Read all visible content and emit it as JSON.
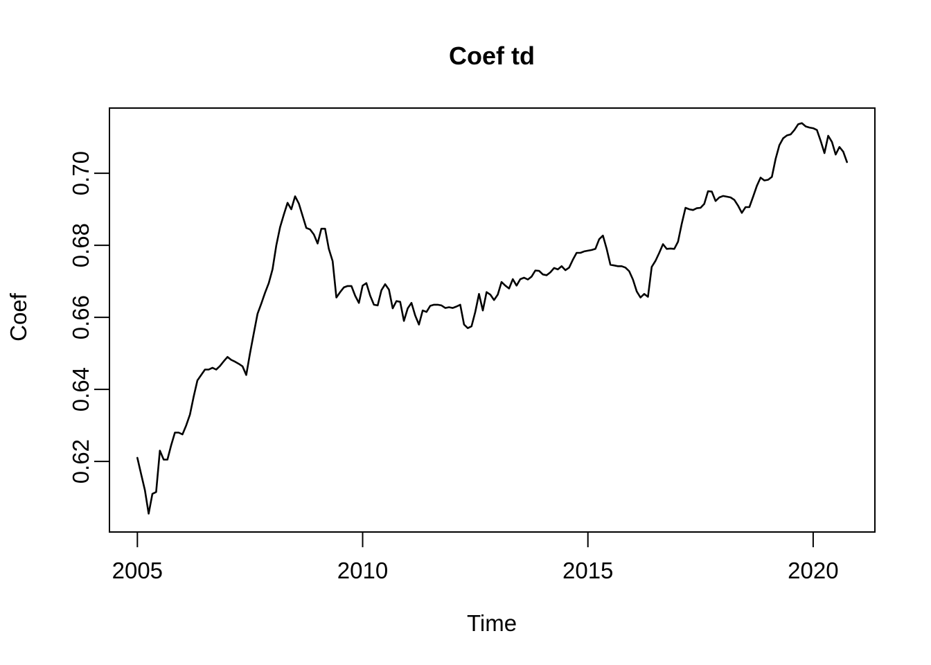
{
  "window": {
    "background": "#ffffff",
    "foreground": "#000000"
  },
  "chart_data": {
    "type": "line",
    "title": "Coef td",
    "xlabel": "Time",
    "ylabel": "Coef",
    "grid": false,
    "legend": null,
    "box": true,
    "line_color": "#000000",
    "background": "#ffffff",
    "x_ticks": [
      2005,
      2010,
      2015,
      2020
    ],
    "y_ticks": [
      0.62,
      0.64,
      0.66,
      0.68,
      0.7
    ],
    "xlim": [
      2004.38,
      2021.37
    ],
    "ylim": [
      0.6004,
      0.7181
    ],
    "x_start": 2005.0,
    "x_step": 0.0833333,
    "x_unit": "decimal-year, monthly frequency",
    "series": [
      {
        "name": "Coef",
        "start": "2005-01",
        "end": "2020-10",
        "frequency": "monthly",
        "values": [
          0.621,
          0.6165,
          0.612,
          0.6055,
          0.611,
          0.6115,
          0.623,
          0.6205,
          0.6205,
          0.6245,
          0.628,
          0.628,
          0.6275,
          0.63,
          0.633,
          0.638,
          0.6425,
          0.644,
          0.6455,
          0.6455,
          0.646,
          0.6455,
          0.6465,
          0.6478,
          0.649,
          0.6482,
          0.6477,
          0.6471,
          0.6464,
          0.644,
          0.65,
          0.6555,
          0.661,
          0.6638,
          0.6668,
          0.6695,
          0.6733,
          0.68,
          0.685,
          0.6885,
          0.6918,
          0.69,
          0.6936,
          0.6916,
          0.6882,
          0.6848,
          0.6844,
          0.683,
          0.6805,
          0.6846,
          0.6846,
          0.679,
          0.6756,
          0.6655,
          0.667,
          0.6683,
          0.6687,
          0.6687,
          0.666,
          0.664,
          0.6688,
          0.6695,
          0.666,
          0.6635,
          0.6633,
          0.6675,
          0.6692,
          0.6677,
          0.6625,
          0.6645,
          0.6643,
          0.659,
          0.6625,
          0.664,
          0.6605,
          0.658,
          0.6619,
          0.6615,
          0.6632,
          0.6635,
          0.6635,
          0.6633,
          0.6626,
          0.6628,
          0.6626,
          0.663,
          0.6635,
          0.658,
          0.657,
          0.6575,
          0.6615,
          0.6665,
          0.6619,
          0.667,
          0.6663,
          0.6648,
          0.6663,
          0.6698,
          0.6688,
          0.668,
          0.6706,
          0.6688,
          0.6706,
          0.671,
          0.6705,
          0.6713,
          0.673,
          0.6729,
          0.6719,
          0.6717,
          0.6725,
          0.6737,
          0.6733,
          0.6742,
          0.6731,
          0.6738,
          0.676,
          0.6779,
          0.6779,
          0.6783,
          0.6785,
          0.6787,
          0.679,
          0.6817,
          0.6827,
          0.679,
          0.6746,
          0.6744,
          0.6742,
          0.6742,
          0.6738,
          0.6728,
          0.6705,
          0.6672,
          0.6655,
          0.6665,
          0.6657,
          0.674,
          0.6757,
          0.6779,
          0.6803,
          0.679,
          0.6791,
          0.679,
          0.681,
          0.686,
          0.6904,
          0.69,
          0.6898,
          0.6903,
          0.6904,
          0.6915,
          0.695,
          0.6949,
          0.6923,
          0.6933,
          0.6937,
          0.6935,
          0.6933,
          0.6926,
          0.691,
          0.689,
          0.6906,
          0.6906,
          0.6935,
          0.6965,
          0.6988,
          0.698,
          0.6982,
          0.699,
          0.704,
          0.7078,
          0.7097,
          0.7105,
          0.7108,
          0.712,
          0.7136,
          0.7139,
          0.713,
          0.7127,
          0.7125,
          0.712,
          0.709,
          0.7056,
          0.7104,
          0.7087,
          0.7052,
          0.7073,
          0.706,
          0.7031
        ]
      }
    ]
  }
}
